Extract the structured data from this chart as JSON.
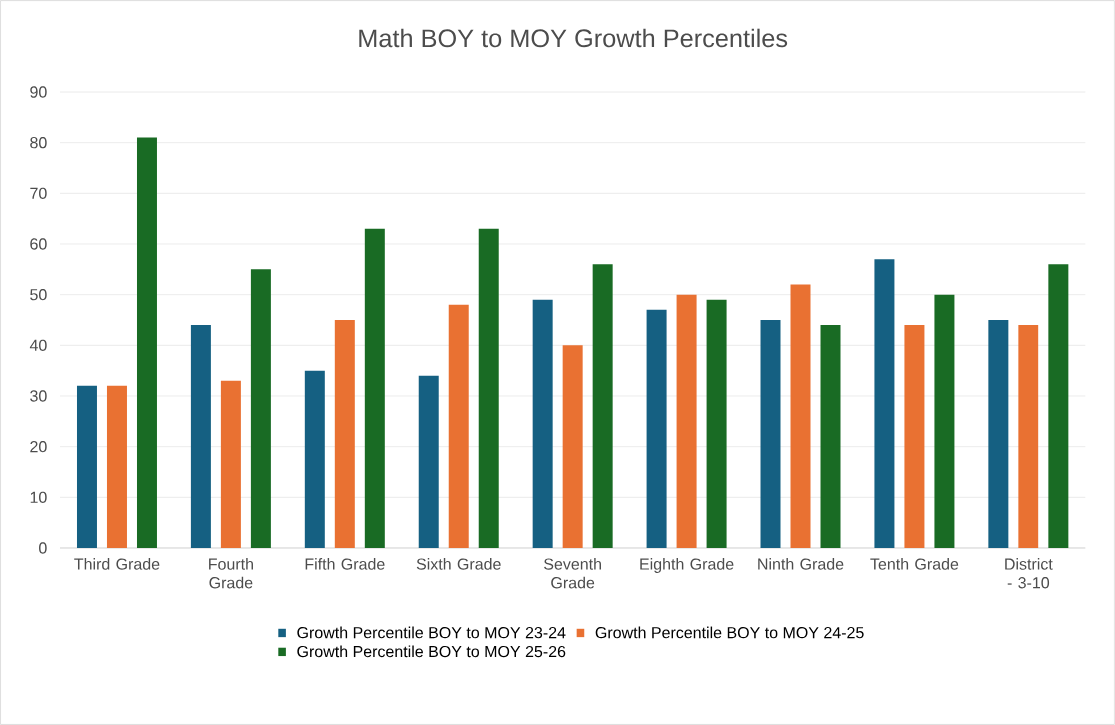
{
  "chart_data": {
    "type": "bar",
    "title": "Math BOY to MOY Growth Percentiles",
    "categories": [
      "Third Grade",
      "Fourth Grade",
      "Fifth Grade",
      "Sixth Grade",
      "Seventh Grade",
      "Eighth Grade",
      "Ninth Grade",
      "Tenth Grade",
      "District - 3-10"
    ],
    "series": [
      {
        "name": "Growth Percentile BOY to MOY 23-24",
        "color": "#156082",
        "values": [
          32,
          44,
          35,
          34,
          49,
          47,
          45,
          57,
          45
        ]
      },
      {
        "name": "Growth Percentile BOY to MOY 24-25",
        "color": "#e97132",
        "values": [
          32,
          33,
          45,
          48,
          40,
          50,
          52,
          44,
          44
        ]
      },
      {
        "name": "Growth Percentile BOY to MOY 25-26",
        "color": "#196b24",
        "values": [
          81,
          55,
          63,
          63,
          56,
          49,
          44,
          50,
          56
        ]
      }
    ],
    "ylim": [
      0,
      90
    ],
    "yticks": [
      0,
      10,
      20,
      30,
      40,
      50,
      60,
      70,
      80,
      90
    ],
    "grid": "y",
    "legend": "bottom"
  }
}
